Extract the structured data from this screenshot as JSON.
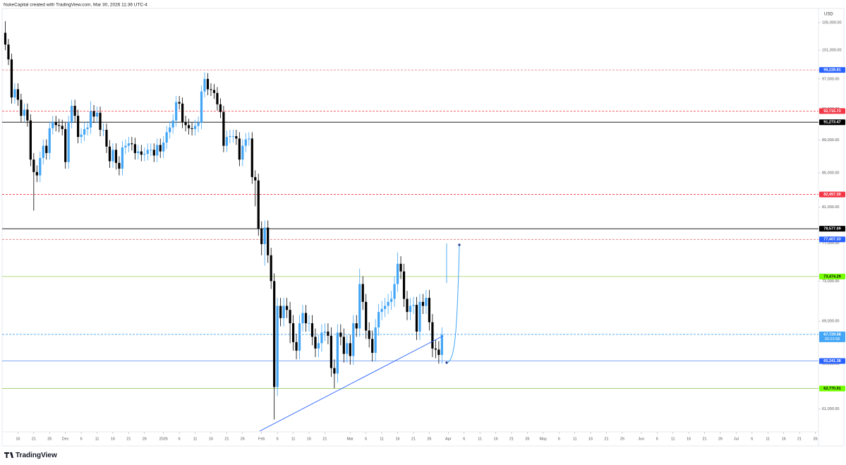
{
  "chart_data": {
    "type": "candlestick",
    "header": "NukeCapital created with TradingView.com, Mar 30, 2026 11:36 UTC-4",
    "currency": "USD",
    "brand": "TradingView",
    "log_scale": true,
    "up_color": "#42a5f5",
    "down_color": "#000000",
    "ylim": [
      59060,
      107100
    ],
    "yticks": [
      {
        "value": 105000,
        "label": "105,000.00"
      },
      {
        "value": 101000,
        "label": "101,000.00"
      },
      {
        "value": 97000,
        "label": "97,000.00"
      },
      {
        "value": 93000,
        "label": "93,000.00"
      },
      {
        "value": 89000,
        "label": "89,000.00"
      },
      {
        "value": 85000,
        "label": "85,000.00"
      },
      {
        "value": 81000,
        "label": "81,000.00"
      },
      {
        "value": 77000,
        "label": "77,000.00"
      },
      {
        "value": 73000,
        "label": "73,000.00"
      },
      {
        "value": 69000,
        "label": "69,000.00"
      },
      {
        "value": 65000,
        "label": "65,000.00"
      },
      {
        "value": 61000,
        "label": "61,000.00"
      }
    ],
    "xlim": [
      "2025-11-11",
      "2026-07-27"
    ],
    "xticks": [
      {
        "value": "2025-11-16",
        "label": "16"
      },
      {
        "value": "2025-11-21",
        "label": "21"
      },
      {
        "value": "2025-11-26",
        "label": "26"
      },
      {
        "value": "2025-12-01",
        "label": "Dec"
      },
      {
        "value": "2025-12-06",
        "label": "6"
      },
      {
        "value": "2025-12-11",
        "label": "11"
      },
      {
        "value": "2025-12-16",
        "label": "16"
      },
      {
        "value": "2025-12-21",
        "label": "21"
      },
      {
        "value": "2025-12-26",
        "label": "26"
      },
      {
        "value": "2026-01-01",
        "label": "2026"
      },
      {
        "value": "2026-01-06",
        "label": "6"
      },
      {
        "value": "2026-01-11",
        "label": "11"
      },
      {
        "value": "2026-01-16",
        "label": "16"
      },
      {
        "value": "2026-01-21",
        "label": "21"
      },
      {
        "value": "2026-01-26",
        "label": "26"
      },
      {
        "value": "2026-02-01",
        "label": "Feb"
      },
      {
        "value": "2026-02-06",
        "label": "6"
      },
      {
        "value": "2026-02-11",
        "label": "11"
      },
      {
        "value": "2026-02-16",
        "label": "16"
      },
      {
        "value": "2026-02-21",
        "label": "21"
      },
      {
        "value": "2026-03-01",
        "label": "Mar"
      },
      {
        "value": "2026-03-06",
        "label": "6"
      },
      {
        "value": "2026-03-11",
        "label": "11"
      },
      {
        "value": "2026-03-16",
        "label": "16"
      },
      {
        "value": "2026-03-21",
        "label": "21"
      },
      {
        "value": "2026-03-26",
        "label": "26"
      },
      {
        "value": "2026-04-01",
        "label": "Apr"
      },
      {
        "value": "2026-04-06",
        "label": "6"
      },
      {
        "value": "2026-04-11",
        "label": "11"
      },
      {
        "value": "2026-04-16",
        "label": "16"
      },
      {
        "value": "2026-04-21",
        "label": "21"
      },
      {
        "value": "2026-04-26",
        "label": "26"
      },
      {
        "value": "2026-05-01",
        "label": "May"
      },
      {
        "value": "2026-05-06",
        "label": "6"
      },
      {
        "value": "2026-05-11",
        "label": "11"
      },
      {
        "value": "2026-05-16",
        "label": "16"
      },
      {
        "value": "2026-05-21",
        "label": "21"
      },
      {
        "value": "2026-05-26",
        "label": "26"
      },
      {
        "value": "2026-06-01",
        "label": "Jun"
      },
      {
        "value": "2026-06-06",
        "label": "6"
      },
      {
        "value": "2026-06-11",
        "label": "11"
      },
      {
        "value": "2026-06-16",
        "label": "16"
      },
      {
        "value": "2026-06-21",
        "label": "21"
      },
      {
        "value": "2026-06-26",
        "label": "26"
      },
      {
        "value": "2026-07-01",
        "label": "Jul"
      },
      {
        "value": "2026-07-06",
        "label": "6"
      },
      {
        "value": "2026-07-11",
        "label": "11"
      },
      {
        "value": "2026-07-16",
        "label": "16"
      },
      {
        "value": "2026-07-21",
        "label": "21"
      },
      {
        "value": "2026-07-26",
        "label": "26"
      }
    ],
    "x": [
      "2025-11-12",
      "2025-11-13",
      "2025-11-14",
      "2025-11-15",
      "2025-11-16",
      "2025-11-17",
      "2025-11-18",
      "2025-11-19",
      "2025-11-20",
      "2025-11-21",
      "2025-11-22",
      "2025-11-23",
      "2025-11-24",
      "2025-11-25",
      "2025-11-26",
      "2025-11-27",
      "2025-11-28",
      "2025-11-29",
      "2025-11-30",
      "2025-12-01",
      "2025-12-02",
      "2025-12-03",
      "2025-12-04",
      "2025-12-05",
      "2025-12-06",
      "2025-12-07",
      "2025-12-08",
      "2025-12-09",
      "2025-12-10",
      "2025-12-11",
      "2025-12-12",
      "2025-12-13",
      "2025-12-14",
      "2025-12-15",
      "2025-12-16",
      "2025-12-17",
      "2025-12-18",
      "2025-12-19",
      "2025-12-20",
      "2025-12-21",
      "2025-12-22",
      "2025-12-23",
      "2025-12-24",
      "2025-12-25",
      "2025-12-26",
      "2025-12-27",
      "2025-12-28",
      "2025-12-29",
      "2025-12-30",
      "2025-12-31",
      "2026-01-01",
      "2026-01-02",
      "2026-01-03",
      "2026-01-04",
      "2026-01-05",
      "2026-01-06",
      "2026-01-07",
      "2026-01-08",
      "2026-01-09",
      "2026-01-10",
      "2026-01-11",
      "2026-01-12",
      "2026-01-13",
      "2026-01-14",
      "2026-01-15",
      "2026-01-16",
      "2026-01-17",
      "2026-01-18",
      "2026-01-19",
      "2026-01-20",
      "2026-01-21",
      "2026-01-22",
      "2026-01-23",
      "2026-01-24",
      "2026-01-25",
      "2026-01-26",
      "2026-01-27",
      "2026-01-28",
      "2026-01-29",
      "2026-01-30",
      "2026-01-31",
      "2026-02-01",
      "2026-02-02",
      "2026-02-03",
      "2026-02-04",
      "2026-02-05",
      "2026-02-06",
      "2026-02-07",
      "2026-02-08",
      "2026-02-09",
      "2026-02-10",
      "2026-02-11",
      "2026-02-12",
      "2026-02-13",
      "2026-02-14",
      "2026-02-15",
      "2026-02-16",
      "2026-02-17",
      "2026-02-18",
      "2026-02-19",
      "2026-02-20",
      "2026-02-21",
      "2026-02-22",
      "2026-02-23",
      "2026-02-24",
      "2026-02-25",
      "2026-02-26",
      "2026-02-27",
      "2026-02-28",
      "2026-03-01",
      "2026-03-02",
      "2026-03-03",
      "2026-03-04",
      "2026-03-05",
      "2026-03-06",
      "2026-03-07",
      "2026-03-08",
      "2026-03-09",
      "2026-03-10",
      "2026-03-11",
      "2026-03-12",
      "2026-03-13",
      "2026-03-14",
      "2026-03-15",
      "2026-03-16",
      "2026-03-17",
      "2026-03-18",
      "2026-03-19",
      "2026-03-20",
      "2026-03-21",
      "2026-03-22",
      "2026-03-23",
      "2026-03-24",
      "2026-03-25",
      "2026-03-26",
      "2026-03-27",
      "2026-03-28",
      "2026-03-29",
      "2026-03-30"
    ],
    "open": [
      103500,
      101800,
      99700,
      94500,
      95600,
      94200,
      92100,
      92900,
      91500,
      86600,
      85100,
      84700,
      86800,
      88300,
      87400,
      90500,
      91300,
      90900,
      90800,
      90400,
      86300,
      91300,
      93400,
      92100,
      89400,
      89700,
      90400,
      90600,
      92700,
      92000,
      92500,
      90300,
      90300,
      88200,
      86400,
      87800,
      86200,
      85500,
      88100,
      88300,
      88600,
      88500,
      87400,
      87600,
      87200,
      87300,
      87800,
      87800,
      87100,
      88400,
      87600,
      88700,
      90000,
      90600,
      91500,
      93900,
      93700,
      91300,
      90900,
      90500,
      90400,
      90800,
      91200,
      95300,
      97000,
      95600,
      95500,
      95100,
      93600,
      92600,
      88300,
      89400,
      89500,
      89500,
      89200,
      86600,
      88300,
      89100,
      89200,
      84500,
      84100,
      78600,
      76900,
      78700,
      75700,
      73000,
      62900,
      70500,
      69300,
      70500,
      70100,
      68800,
      67000,
      66200,
      68800,
      69800,
      68800,
      68800,
      67500,
      66400,
      66900,
      67900,
      68000,
      67600,
      64600,
      64100,
      67900,
      67500,
      65900,
      66900,
      65700,
      68800,
      68300,
      72700,
      70900,
      68100,
      67300,
      66000,
      68400,
      69900,
      70200,
      70500,
      70900,
      71200,
      72700,
      74800,
      74000,
      71200,
      69900,
      70500,
      70600,
      68000,
      70900,
      70500,
      71300,
      68900,
      66400,
      66300,
      65800
    ],
    "high": [
      105200,
      102600,
      100500,
      96400,
      96400,
      95000,
      93700,
      93700,
      92300,
      87400,
      85900,
      87600,
      89100,
      89100,
      91300,
      92100,
      92100,
      91700,
      91600,
      91200,
      92100,
      94200,
      94200,
      92900,
      90500,
      91200,
      91400,
      94000,
      93500,
      93300,
      93300,
      91100,
      91100,
      89000,
      88600,
      88600,
      87000,
      88900,
      89100,
      89400,
      89400,
      89300,
      88400,
      88400,
      88100,
      88600,
      88600,
      88600,
      89200,
      89200,
      89500,
      90800,
      91400,
      92300,
      94700,
      94700,
      94500,
      92100,
      91700,
      91300,
      91600,
      92000,
      96100,
      97900,
      97800,
      96400,
      96300,
      95900,
      94400,
      93400,
      90200,
      90300,
      90300,
      90300,
      90000,
      89100,
      89900,
      90000,
      90000,
      85300,
      84900,
      79400,
      79500,
      79500,
      76500,
      73800,
      71300,
      71300,
      71300,
      71300,
      70900,
      69600,
      67800,
      69600,
      70600,
      70600,
      69600,
      69600,
      68300,
      67700,
      68700,
      68800,
      68800,
      68400,
      65400,
      68700,
      68700,
      68300,
      67700,
      67700,
      69600,
      69600,
      74300,
      73500,
      71700,
      68900,
      68100,
      69200,
      70700,
      71000,
      71300,
      71700,
      72000,
      73500,
      76000,
      75600,
      74800,
      72000,
      71300,
      71400,
      71400,
      71700,
      71700,
      72100,
      72100,
      69700,
      67200,
      67100,
      68400
    ],
    "low": [
      101000,
      98900,
      93700,
      93700,
      93400,
      91300,
      91300,
      90700,
      85800,
      80600,
      83900,
      83900,
      86000,
      86600,
      86600,
      89700,
      90100,
      90000,
      89600,
      85500,
      85500,
      90500,
      91300,
      88600,
      88600,
      88900,
      89600,
      89800,
      91200,
      91200,
      89500,
      89500,
      87400,
      85600,
      85600,
      85400,
      84700,
      84700,
      87300,
      87500,
      87700,
      86600,
      86600,
      86400,
      86400,
      86500,
      87000,
      86300,
      86300,
      86800,
      86800,
      87900,
      89200,
      89800,
      90700,
      92900,
      90500,
      90100,
      89700,
      89600,
      89600,
      90000,
      90400,
      94500,
      94800,
      94700,
      94300,
      92800,
      91800,
      87500,
      87500,
      88600,
      88700,
      88400,
      85800,
      85800,
      87500,
      88300,
      83700,
      81100,
      77800,
      75700,
      74600,
      74900,
      72200,
      60100,
      62100,
      68500,
      68500,
      69300,
      66900,
      66200,
      65400,
      65400,
      68000,
      68000,
      68000,
      66700,
      65600,
      65600,
      66100,
      67100,
      66800,
      63800,
      62800,
      63300,
      66700,
      65100,
      65100,
      64900,
      64900,
      67500,
      67500,
      70100,
      67300,
      66500,
      65200,
      65200,
      67600,
      69100,
      69400,
      69700,
      70100,
      70400,
      71900,
      73200,
      70400,
      69100,
      69100,
      69700,
      67200,
      67200,
      69700,
      69700,
      68100,
      65600,
      65500,
      65000,
      65000
    ],
    "close": [
      101800,
      99700,
      94500,
      95600,
      94200,
      92100,
      92900,
      91500,
      86600,
      85100,
      84700,
      86800,
      88300,
      87400,
      90500,
      91300,
      90900,
      90800,
      90400,
      86300,
      91300,
      93400,
      92100,
      89400,
      89700,
      90400,
      90600,
      92700,
      92000,
      92500,
      90300,
      90300,
      88200,
      86400,
      87800,
      86200,
      85500,
      88100,
      88300,
      88600,
      88500,
      87400,
      87600,
      87200,
      87300,
      87800,
      87800,
      87100,
      88400,
      87600,
      88700,
      90000,
      90600,
      91500,
      93900,
      93700,
      91300,
      90900,
      90500,
      90400,
      90800,
      91200,
      95300,
      97000,
      95600,
      95500,
      95100,
      93600,
      92600,
      88300,
      89400,
      89500,
      89500,
      89200,
      86600,
      88300,
      89100,
      89200,
      84500,
      84100,
      78600,
      76900,
      78700,
      75700,
      73000,
      62900,
      70500,
      69300,
      70500,
      70100,
      68800,
      67000,
      66200,
      68800,
      69800,
      68800,
      68800,
      67500,
      66400,
      66900,
      67900,
      68000,
      67600,
      64600,
      64100,
      67900,
      67500,
      65900,
      66900,
      65700,
      68800,
      68300,
      72700,
      70900,
      68100,
      67300,
      66000,
      68400,
      69900,
      70200,
      70500,
      70900,
      71200,
      72700,
      74800,
      74000,
      71200,
      69900,
      70500,
      70600,
      68000,
      70900,
      70500,
      71300,
      68900,
      66400,
      66300,
      65800,
      67700
    ],
    "price_lines": [
      {
        "value": 98228.81,
        "label": "98,228.81",
        "color": "#2962ff",
        "line_color": "#e57373",
        "dashed": true
      },
      {
        "value": 92716.73,
        "label": "92,716.73",
        "color": "#f23645",
        "line_color": "#f23645",
        "dashed": true
      },
      {
        "value": 91273.47,
        "label": "91,273.47",
        "color": "#000000",
        "line_color": "#000000",
        "dashed": false
      },
      {
        "value": 82457.3,
        "label": "82,457.30",
        "color": "#f23645",
        "line_color": "#f23645",
        "dashed": true
      },
      {
        "value": 78577.09,
        "label": "78,577.09",
        "color": "#000000",
        "line_color": "#000000",
        "dashed": false
      },
      {
        "value": 77407.33,
        "label": "77,407.33",
        "color": "#2962ff",
        "line_color": "#e57373",
        "dashed": true
      },
      {
        "value": 73474.29,
        "label": "73,474.29",
        "color": "#76ff03",
        "line_color": "#9ccc65",
        "dashed": false
      },
      {
        "value": 67729.58,
        "label": "67,729.58",
        "countdown": "00:23:58",
        "color": "#42a5f5",
        "line_color": "#42a5f5",
        "dashed": true
      },
      {
        "value": 65241.38,
        "label": "65,241.38",
        "color": "#2962ff",
        "line_color": "#5c8df6",
        "dashed": false
      },
      {
        "value": 62770.01,
        "label": "62,770.01",
        "color": "#76ff03",
        "line_color": "#9ccc65",
        "dashed": false
      }
    ]
  }
}
